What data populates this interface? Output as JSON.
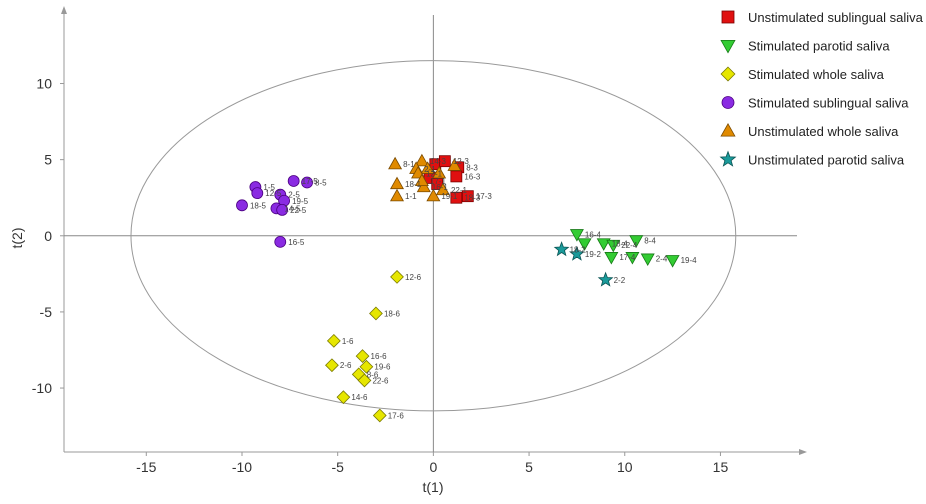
{
  "chart_data": {
    "type": "scatter",
    "title": "",
    "xlabel": "t(1)",
    "ylabel": "t(2)",
    "xlim": [
      -19.3,
      19
    ],
    "ylim": [
      -14.2,
      14.5
    ],
    "xticks": [
      -15,
      -10,
      -5,
      0,
      5,
      10,
      15
    ],
    "yticks": [
      10,
      5,
      0,
      -5,
      -10
    ],
    "ellipse": {
      "cx": 0,
      "cy": 0,
      "rx": 15.8,
      "ry": 11.5,
      "color": "#999999"
    },
    "series": [
      {
        "name": "Unstimulated sublingual saliva",
        "marker": "square",
        "color": "#e01010",
        "stroke": "#7a0000",
        "points": [
          {
            "x": 0.1,
            "y": 4.7,
            "label": ""
          },
          {
            "x": 0.6,
            "y": 4.9,
            "label": "12-3"
          },
          {
            "x": 1.3,
            "y": 4.5,
            "label": "8-3"
          },
          {
            "x": -0.2,
            "y": 3.8,
            "label": ""
          },
          {
            "x": 1.2,
            "y": 3.9,
            "label": "16-3"
          },
          {
            "x": 0.2,
            "y": 3.4,
            "label": ""
          },
          {
            "x": 1.2,
            "y": 2.5,
            "label": "18-3"
          },
          {
            "x": 1.8,
            "y": 2.6,
            "label": "17-3"
          }
        ]
      },
      {
        "name": "Stimulated parotid saliva",
        "marker": "triangle-down",
        "color": "#33cc33",
        "stroke": "#167a16",
        "points": [
          {
            "x": 7.5,
            "y": 0.1,
            "label": "16-4"
          },
          {
            "x": 7.9,
            "y": -0.5,
            "label": ""
          },
          {
            "x": 8.9,
            "y": -0.5,
            "label": "18-4"
          },
          {
            "x": 9.4,
            "y": -0.6,
            "label": "22-4"
          },
          {
            "x": 10.6,
            "y": -0.3,
            "label": "8-4"
          },
          {
            "x": 9.3,
            "y": -1.4,
            "label": "17-4"
          },
          {
            "x": 10.4,
            "y": -1.4,
            "label": ""
          },
          {
            "x": 11.2,
            "y": -1.5,
            "label": "2-4"
          },
          {
            "x": 12.5,
            "y": -1.6,
            "label": "19-4"
          }
        ]
      },
      {
        "name": "Stimulated whole saliva",
        "marker": "diamond",
        "color": "#e6e600",
        "stroke": "#7a7a00",
        "points": [
          {
            "x": -1.9,
            "y": -2.7,
            "label": "12-6"
          },
          {
            "x": -3,
            "y": -5.1,
            "label": "18-6"
          },
          {
            "x": -5.2,
            "y": -6.9,
            "label": "1-6"
          },
          {
            "x": -3.7,
            "y": -7.9,
            "label": "16-6"
          },
          {
            "x": -5.3,
            "y": -8.5,
            "label": "2-6"
          },
          {
            "x": -3.5,
            "y": -8.6,
            "label": "19-6"
          },
          {
            "x": -3.9,
            "y": -9.1,
            "label": "8-6"
          },
          {
            "x": -3.6,
            "y": -9.5,
            "label": "22-6"
          },
          {
            "x": -4.7,
            "y": -10.6,
            "label": "14-6"
          },
          {
            "x": -2.8,
            "y": -11.8,
            "label": "17-6"
          }
        ]
      },
      {
        "name": "Stimulated sublingual saliva",
        "marker": "circle",
        "color": "#8a2be2",
        "stroke": "#4b0082",
        "points": [
          {
            "x": -9.3,
            "y": 3.2,
            "label": "1-5"
          },
          {
            "x": -9.2,
            "y": 2.8,
            "label": "12-5"
          },
          {
            "x": -8,
            "y": 2.7,
            "label": "2-5"
          },
          {
            "x": -7.3,
            "y": 3.6,
            "label": "17-5"
          },
          {
            "x": -6.6,
            "y": 3.5,
            "label": "8-5"
          },
          {
            "x": -10,
            "y": 2,
            "label": "18-5"
          },
          {
            "x": -7.8,
            "y": 2.3,
            "label": "19-5"
          },
          {
            "x": -8.2,
            "y": 1.8,
            "label": "14-5"
          },
          {
            "x": -7.9,
            "y": 1.7,
            "label": "22-5"
          },
          {
            "x": -8,
            "y": -0.4,
            "label": "16-5"
          }
        ]
      },
      {
        "name": "Unstimulated whole saliva",
        "marker": "triangle-up",
        "color": "#e08a00",
        "stroke": "#7a4a00",
        "points": [
          {
            "x": -2,
            "y": 4.7,
            "label": "8-1"
          },
          {
            "x": -0.6,
            "y": 4.9,
            "label": "14-3"
          },
          {
            "x": -0.9,
            "y": 4.4,
            "label": "2-1"
          },
          {
            "x": -0.3,
            "y": 4.4,
            "label": ""
          },
          {
            "x": 1.1,
            "y": 4.6,
            "label": ""
          },
          {
            "x": 0.3,
            "y": 4.1,
            "label": ""
          },
          {
            "x": -0.8,
            "y": 4.1,
            "label": "12-1"
          },
          {
            "x": -1.9,
            "y": 3.4,
            "label": "18-1"
          },
          {
            "x": -0.5,
            "y": 3.2,
            "label": "16-1"
          },
          {
            "x": -0.6,
            "y": 3.6,
            "label": "17-1"
          },
          {
            "x": 0.5,
            "y": 3,
            "label": "22-1"
          },
          {
            "x": 0,
            "y": 2.6,
            "label": "19-1"
          },
          {
            "x": -1.9,
            "y": 2.6,
            "label": "1-1"
          }
        ]
      },
      {
        "name": "Unstimulated parotid saliva",
        "marker": "star",
        "color": "#1a9a9a",
        "stroke": "#0b5555",
        "points": [
          {
            "x": 6.7,
            "y": -0.9,
            "label": "18-2"
          },
          {
            "x": 7.5,
            "y": -1.2,
            "label": "19-2"
          },
          {
            "x": 9,
            "y": -2.9,
            "label": "2-2"
          }
        ]
      }
    ]
  }
}
